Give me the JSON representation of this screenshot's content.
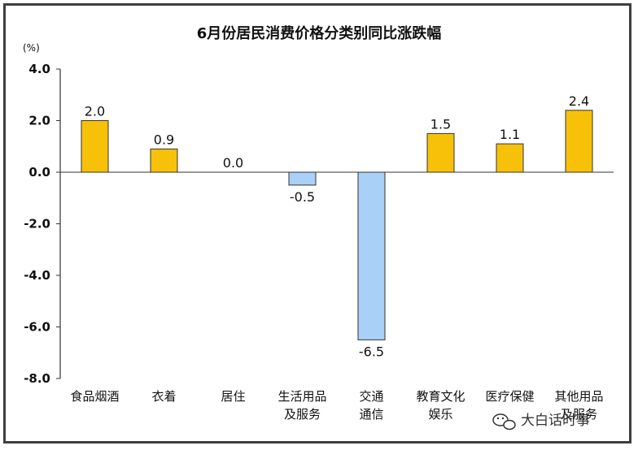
{
  "chart_data": {
    "type": "bar",
    "title": "6月份居民消费价格分类别同比涨跌幅",
    "ylabel": "(%)",
    "ylim": [
      -8.0,
      4.0
    ],
    "yticks": [
      "4.0",
      "2.0",
      "0.0",
      "-2.0",
      "-4.0",
      "-6.0",
      "-8.0"
    ],
    "categories": [
      [
        "食品烟酒"
      ],
      [
        "衣着"
      ],
      [
        "居住"
      ],
      [
        "生活用品",
        "及服务"
      ],
      [
        "交通",
        "通信"
      ],
      [
        "教育文化",
        "娱乐"
      ],
      [
        "医疗保健"
      ],
      [
        "其他用品",
        "及服务"
      ]
    ],
    "values": [
      2.0,
      0.9,
      0.0,
      -0.5,
      -6.5,
      1.5,
      1.1,
      2.4
    ],
    "value_labels": [
      "2.0",
      "0.9",
      "0.0",
      "-0.5",
      "-6.5",
      "1.5",
      "1.1",
      "2.4"
    ],
    "colors": {
      "positive": "#F7C10A",
      "negative": "#A9D0F7",
      "bar_border": "#333333",
      "axis": "#333333"
    },
    "grid": false,
    "legend": "none"
  },
  "watermark": {
    "text": "大白话时事",
    "icon": "wechat-icon"
  }
}
